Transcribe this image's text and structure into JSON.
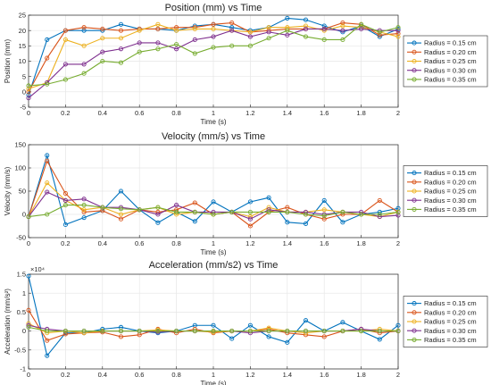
{
  "chart_data": [
    {
      "type": "line",
      "title": "Position (mm) vs Time",
      "xlabel": "Time (s)",
      "ylabel": "Position (mm)",
      "xlim": [
        0,
        2
      ],
      "ylim": [
        -5,
        25
      ],
      "xticks": [
        "0",
        "0.2",
        "0.4",
        "0.6",
        "0.8",
        "1",
        "1.2",
        "1.4",
        "1.6",
        "1.8",
        "2"
      ],
      "yticks": [
        "-5",
        "0",
        "5",
        "10",
        "15",
        "20",
        "25"
      ],
      "y_exponent": "",
      "grid": true,
      "legend_position": "right",
      "x": [
        0,
        0.1,
        0.2,
        0.3,
        0.4,
        0.5,
        0.6,
        0.7,
        0.8,
        0.9,
        1.0,
        1.1,
        1.2,
        1.3,
        1.4,
        1.5,
        1.6,
        1.7,
        1.8,
        1.9,
        2.0
      ],
      "series": [
        {
          "name": "Radius = 0.15 cm",
          "color": "#0072BD",
          "values": [
            -1,
            17,
            20,
            20,
            20,
            22,
            20.5,
            20.5,
            20,
            21.5,
            22,
            21,
            20,
            21,
            24,
            23.5,
            21.5,
            19.5,
            21.5,
            18,
            20.5
          ]
        },
        {
          "name": "Radius = 0.20 cm",
          "color": "#D95319",
          "values": [
            0,
            11,
            20,
            21,
            20.5,
            20,
            20.5,
            20.5,
            21,
            21,
            22,
            22.5,
            19.5,
            20,
            20.5,
            20.5,
            20.5,
            22.5,
            22,
            18.5,
            19
          ]
        },
        {
          "name": "Radius = 0.25 cm",
          "color": "#EDB120",
          "values": [
            1,
            3,
            17,
            15,
            17.5,
            17.5,
            20,
            22,
            20,
            20.5,
            20.5,
            20,
            19.5,
            21,
            21,
            21.5,
            20,
            21.5,
            21,
            19.5,
            18
          ]
        },
        {
          "name": "Radius = 0.30 cm",
          "color": "#7E2F8E",
          "values": [
            -2,
            3,
            9,
            9,
            13,
            14,
            16,
            16,
            14,
            17,
            18,
            20,
            18,
            19.5,
            18.5,
            20.5,
            20.5,
            20,
            20.5,
            20,
            20
          ]
        },
        {
          "name": "Radius = 0.35 cm",
          "color": "#77AC30",
          "values": [
            2,
            2.5,
            4,
            6,
            10,
            9.5,
            13,
            14,
            15.5,
            12.5,
            14.5,
            15,
            15,
            17.5,
            20,
            18,
            17,
            17,
            22,
            19.5,
            21
          ]
        }
      ]
    },
    {
      "type": "line",
      "title": "Velocity (mm/s) vs Time",
      "xlabel": "Time (s)",
      "ylabel": "Velocity (mm/s)",
      "xlim": [
        0,
        2
      ],
      "ylim": [
        -50,
        150
      ],
      "xticks": [
        "0",
        "0.2",
        "0.4",
        "0.6",
        "0.8",
        "1",
        "1.2",
        "1.4",
        "1.6",
        "1.8",
        "2"
      ],
      "yticks": [
        "-50",
        "0",
        "50",
        "100",
        "150"
      ],
      "y_exponent": "",
      "grid": true,
      "legend_position": "right",
      "x": [
        0,
        0.1,
        0.2,
        0.3,
        0.4,
        0.5,
        0.6,
        0.7,
        0.8,
        0.9,
        1.0,
        1.1,
        1.2,
        1.3,
        1.4,
        1.5,
        1.6,
        1.7,
        1.8,
        1.9,
        2.0
      ],
      "series": [
        {
          "name": "Radius = 0.15 cm",
          "color": "#0072BD",
          "values": [
            -5,
            127,
            -22,
            -7,
            8,
            50,
            10,
            -18,
            5,
            -15,
            27,
            5,
            27,
            36,
            -17,
            -20,
            30,
            -17,
            0,
            5,
            13
          ]
        },
        {
          "name": "Radius = 0.20 cm",
          "color": "#D95319",
          "values": [
            -5,
            115,
            45,
            5,
            8,
            -10,
            10,
            5,
            10,
            25,
            0,
            5,
            -25,
            5,
            15,
            0,
            -10,
            0,
            0,
            30,
            5
          ]
        },
        {
          "name": "Radius = 0.25 cm",
          "color": "#EDB120",
          "values": [
            -5,
            68,
            30,
            10,
            15,
            0,
            10,
            15,
            0,
            5,
            0,
            5,
            -5,
            15,
            5,
            5,
            10,
            5,
            0,
            -5,
            5
          ]
        },
        {
          "name": "Radius = 0.30 cm",
          "color": "#7E2F8E",
          "values": [
            -5,
            48,
            30,
            33,
            15,
            15,
            10,
            0,
            20,
            5,
            5,
            5,
            -10,
            10,
            5,
            5,
            0,
            5,
            5,
            -5,
            -2
          ]
        },
        {
          "name": "Radius = 0.35 cm",
          "color": "#77AC30",
          "values": [
            -5,
            0,
            20,
            20,
            15,
            12,
            10,
            15,
            5,
            5,
            0,
            5,
            5,
            5,
            5,
            0,
            -3,
            5,
            0,
            0,
            5
          ]
        }
      ]
    },
    {
      "type": "line",
      "title": "Acceleration (mm/s2) vs Time",
      "xlabel": "Time (s)",
      "ylabel": "Acceleration (mm/s²)",
      "xlim": [
        0,
        2
      ],
      "ylim": [
        -10000,
        15000
      ],
      "xticks": [
        "0",
        "0.2",
        "0.4",
        "0.6",
        "0.8",
        "1",
        "1.2",
        "1.4",
        "1.6",
        "1.8",
        "2"
      ],
      "yticks": [
        "-1",
        "-0.5",
        "0",
        "0.5",
        "1",
        "1.5"
      ],
      "y_exponent": "×10⁴",
      "grid": true,
      "legend_position": "right",
      "x": [
        0,
        0.1,
        0.2,
        0.3,
        0.4,
        0.5,
        0.6,
        0.7,
        0.8,
        0.9,
        1.0,
        1.1,
        1.2,
        1.3,
        1.4,
        1.5,
        1.6,
        1.7,
        1.8,
        1.9,
        2.0
      ],
      "series": [
        {
          "name": "Radius = 0.15 cm",
          "color": "#0072BD",
          "values": [
            14500,
            -6500,
            -500,
            -500,
            500,
            1000,
            0,
            -500,
            0,
            1500,
            1500,
            -2000,
            1500,
            -1500,
            -3000,
            2800,
            0,
            2300,
            0,
            -2200,
            1500
          ]
        },
        {
          "name": "Radius = 0.20 cm",
          "color": "#D95319",
          "values": [
            5500,
            -2500,
            -800,
            -500,
            -300,
            -1500,
            -1000,
            500,
            -500,
            500,
            -500,
            0,
            0,
            500,
            -500,
            -1000,
            -1500,
            0,
            500,
            -500,
            0
          ]
        },
        {
          "name": "Radius = 0.25 cm",
          "color": "#EDB120",
          "values": [
            2000,
            -500,
            0,
            -500,
            0,
            0,
            0,
            300,
            0,
            0,
            -300,
            0,
            0,
            800,
            0,
            -500,
            0,
            0,
            0,
            500,
            0
          ]
        },
        {
          "name": "Radius = 0.30 cm",
          "color": "#7E2F8E",
          "values": [
            1500,
            500,
            0,
            0,
            0,
            0,
            0,
            -300,
            0,
            0,
            0,
            0,
            -500,
            0,
            0,
            0,
            0,
            0,
            500,
            0,
            0
          ]
        },
        {
          "name": "Radius = 0.35 cm",
          "color": "#77AC30",
          "values": [
            1000,
            0,
            0,
            0,
            0,
            0,
            0,
            0,
            0,
            0,
            0,
            0,
            0,
            0,
            0,
            0,
            0,
            0,
            0,
            0,
            0
          ]
        }
      ]
    }
  ]
}
